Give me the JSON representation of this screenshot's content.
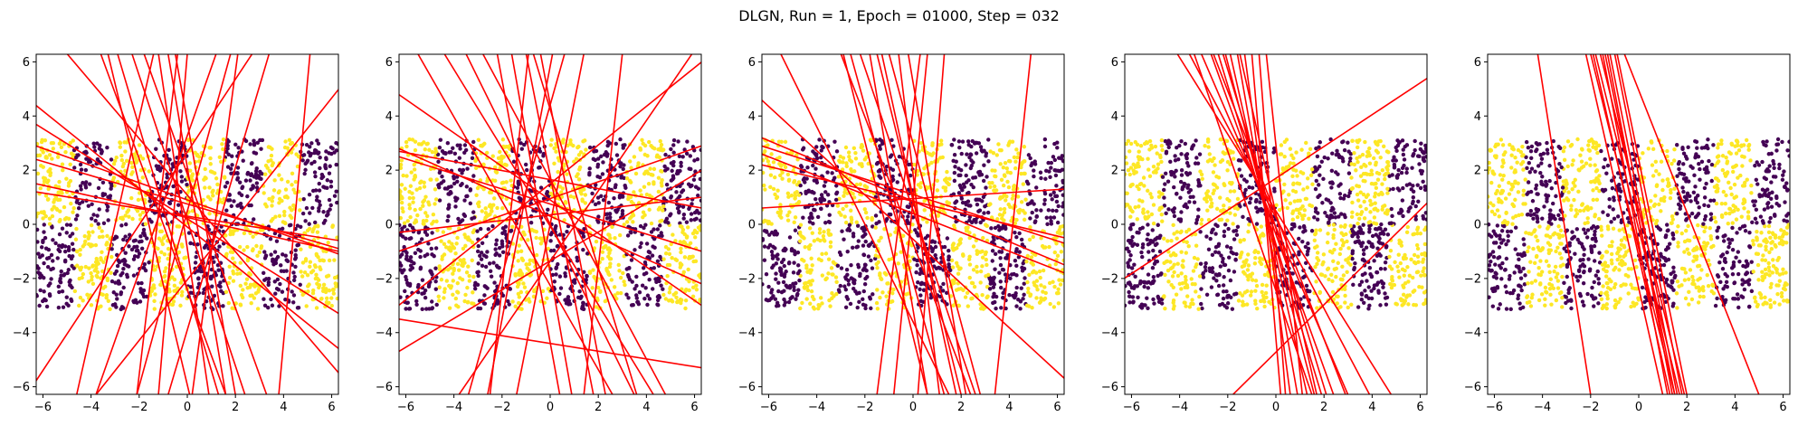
{
  "figure": {
    "suptitle": "DLGN, Run = 1, Epoch = 01000, Step = 032"
  },
  "chart_data": [
    {
      "type": "scatter",
      "panel": 1,
      "xlim": [
        -6.28,
        6.28
      ],
      "ylim": [
        -6.28,
        6.28
      ],
      "xticks": [
        -6,
        -4,
        -2,
        0,
        2,
        4,
        6
      ],
      "yticks": [
        -6,
        -4,
        -2,
        0,
        2,
        4,
        6
      ],
      "xticklabels": [
        "−6",
        "−4",
        "−2",
        "0",
        "2",
        "4",
        "6"
      ],
      "yticklabels": [
        "−6",
        "−4",
        "−2",
        "0",
        "2",
        "4",
        "6"
      ],
      "grid": false,
      "point_colors": {
        "class_0": "#440154",
        "class_1": "#fde725"
      },
      "line_color": "#ff0000",
      "lines": [
        [
          -6.3,
          2.9,
          6.3,
          -1.1
        ],
        [
          -6.3,
          2.4,
          6.3,
          -0.9
        ],
        [
          -6.3,
          1.5,
          6.3,
          -1.0
        ],
        [
          -6.3,
          1.2,
          6.3,
          -0.6
        ],
        [
          -6.3,
          3.7,
          6.3,
          -3.3
        ],
        [
          -6.3,
          4.4,
          6.3,
          -4.6
        ],
        [
          -5.0,
          6.3,
          6.3,
          -5.5
        ],
        [
          -6.3,
          -5.8,
          2.7,
          6.3
        ],
        [
          -3.8,
          -6.3,
          6.3,
          5.0
        ],
        [
          -3.6,
          6.3,
          1.6,
          -6.3
        ],
        [
          -3.3,
          6.3,
          0.1,
          -6.3
        ],
        [
          -2.9,
          6.3,
          1.3,
          -6.3
        ],
        [
          -2.3,
          6.3,
          2.4,
          -6.3
        ],
        [
          -1.8,
          6.3,
          3.3,
          -6.3
        ],
        [
          -1.2,
          6.3,
          0.9,
          -6.3
        ],
        [
          -0.8,
          6.3,
          1.6,
          -6.3
        ],
        [
          0.0,
          6.3,
          -1.2,
          -6.3
        ],
        [
          -0.5,
          6.3,
          2.0,
          -6.3
        ],
        [
          1.2,
          6.3,
          -3.8,
          -6.3
        ],
        [
          1.8,
          6.3,
          -2.1,
          -6.3
        ],
        [
          2.1,
          6.3,
          0.2,
          -6.3
        ],
        [
          3.4,
          6.3,
          -0.8,
          -6.3
        ],
        [
          5.1,
          6.3,
          3.8,
          -6.3
        ],
        [
          -2.1,
          -6.3,
          -0.4,
          6.3
        ],
        [
          -4.6,
          -6.3,
          -1.4,
          6.3
        ]
      ]
    },
    {
      "type": "scatter",
      "panel": 2,
      "xlim": [
        -6.28,
        6.28
      ],
      "ylim": [
        -6.28,
        6.28
      ],
      "xticks": [
        -6,
        -4,
        -2,
        0,
        2,
        4,
        6
      ],
      "yticks": [
        -6,
        -4,
        -2,
        0,
        2,
        4,
        6
      ],
      "xticklabels": [
        "−6",
        "−4",
        "−2",
        "0",
        "2",
        "4",
        "6"
      ],
      "yticklabels": [
        "−6",
        "−4",
        "−2",
        "0",
        "2",
        "4",
        "6"
      ],
      "grid": false,
      "point_colors": {
        "class_0": "#440154",
        "class_1": "#fde725"
      },
      "line_color": "#ff0000",
      "lines": [
        [
          -6.3,
          2.8,
          6.3,
          -2.2
        ],
        [
          -6.3,
          2.5,
          6.3,
          -1.0
        ],
        [
          -6.3,
          2.7,
          6.3,
          0.6
        ],
        [
          -6.3,
          -1.0,
          6.3,
          2.9
        ],
        [
          -6.3,
          -0.3,
          6.3,
          1.0
        ],
        [
          -6.3,
          -3.5,
          6.3,
          -5.3
        ],
        [
          -6.3,
          -4.7,
          6.3,
          2.0
        ],
        [
          -6.3,
          4.8,
          6.3,
          -3.0
        ],
        [
          -6.3,
          -3.0,
          6.3,
          6.0
        ],
        [
          -5.5,
          6.3,
          2.6,
          -6.3
        ],
        [
          -4.4,
          6.3,
          4.3,
          -6.3
        ],
        [
          -3.5,
          6.3,
          3.5,
          -6.3
        ],
        [
          -2.8,
          6.3,
          4.8,
          -6.3
        ],
        [
          -2.2,
          6.3,
          0.4,
          -6.3
        ],
        [
          -1.6,
          6.3,
          0.9,
          -6.3
        ],
        [
          -1.0,
          6.3,
          1.8,
          -6.3
        ],
        [
          -0.4,
          6.3,
          2.3,
          -6.3
        ],
        [
          0.1,
          6.3,
          -2.6,
          -6.3
        ],
        [
          0.6,
          6.3,
          -3.4,
          -6.3
        ],
        [
          1.4,
          6.3,
          -1.4,
          -6.3
        ],
        [
          -3.8,
          -6.3,
          5.9,
          6.3
        ],
        [
          -2.5,
          -6.3,
          -0.9,
          6.3
        ],
        [
          3.0,
          6.3,
          1.4,
          -6.3
        ],
        [
          -0.7,
          6.3,
          3.6,
          -6.3
        ]
      ]
    },
    {
      "type": "scatter",
      "panel": 3,
      "xlim": [
        -6.28,
        6.28
      ],
      "ylim": [
        -6.28,
        6.28
      ],
      "xticks": [
        -6,
        -4,
        -2,
        0,
        2,
        4,
        6
      ],
      "yticks": [
        -6,
        -4,
        -2,
        0,
        2,
        4,
        6
      ],
      "xticklabels": [
        "−6",
        "−4",
        "−2",
        "0",
        "2",
        "4",
        "6"
      ],
      "yticklabels": [
        "−6",
        "−4",
        "−2",
        "0",
        "2",
        "4",
        "6"
      ],
      "grid": false,
      "point_colors": {
        "class_0": "#440154",
        "class_1": "#fde725"
      },
      "line_color": "#ff0000",
      "lines": [
        [
          -6.3,
          3.2,
          6.3,
          -1.5
        ],
        [
          -6.3,
          2.6,
          6.3,
          -1.8
        ],
        [
          -6.3,
          2.2,
          6.3,
          -0.5
        ],
        [
          -6.3,
          4.6,
          6.3,
          -5.7
        ],
        [
          -6.3,
          0.6,
          6.3,
          1.3
        ],
        [
          -6.3,
          2.9,
          6.3,
          -0.7
        ],
        [
          -5.5,
          6.3,
          1.5,
          -6.3
        ],
        [
          -3.0,
          6.3,
          2.4,
          -6.3
        ],
        [
          -2.6,
          6.3,
          1.3,
          -6.3
        ],
        [
          -2.2,
          6.3,
          2.6,
          -6.3
        ],
        [
          -1.8,
          6.3,
          0.6,
          -6.3
        ],
        [
          -1.3,
          6.3,
          1.8,
          -6.3
        ],
        [
          -1.0,
          6.3,
          2.8,
          -6.3
        ],
        [
          -0.6,
          6.3,
          1.1,
          -6.3
        ],
        [
          -0.2,
          6.3,
          2.2,
          -6.3
        ],
        [
          0.3,
          6.3,
          -1.5,
          -6.3
        ],
        [
          0.6,
          6.3,
          -0.8,
          -6.3
        ],
        [
          1.3,
          6.3,
          0.2,
          -6.3
        ],
        [
          -2.9,
          6.3,
          0.6,
          -6.3
        ],
        [
          -1.5,
          6.3,
          2.0,
          -6.3
        ],
        [
          4.9,
          6.3,
          3.4,
          -6.3
        ]
      ]
    },
    {
      "type": "scatter",
      "panel": 4,
      "xlim": [
        -6.28,
        6.28
      ],
      "ylim": [
        -6.28,
        6.28
      ],
      "xticks": [
        -6,
        -4,
        -2,
        0,
        2,
        4,
        6
      ],
      "yticks": [
        -6,
        -4,
        -2,
        0,
        2,
        4,
        6
      ],
      "xticklabels": [
        "−6",
        "−4",
        "−2",
        "0",
        "2",
        "4",
        "6"
      ],
      "yticklabels": [
        "−6",
        "−4",
        "−2",
        "0",
        "2",
        "4",
        "6"
      ],
      "grid": false,
      "point_colors": {
        "class_0": "#440154",
        "class_1": "#fde725"
      },
      "line_color": "#ff0000",
      "lines": [
        [
          -6.3,
          -2.0,
          6.3,
          5.4
        ],
        [
          -1.8,
          -6.3,
          6.3,
          0.8
        ],
        [
          -4.1,
          6.3,
          4.8,
          -6.3
        ],
        [
          -3.6,
          6.3,
          3.9,
          -6.3
        ],
        [
          -3.1,
          6.3,
          3.0,
          -6.3
        ],
        [
          -2.7,
          6.3,
          2.4,
          -6.3
        ],
        [
          -2.4,
          6.3,
          1.9,
          -6.3
        ],
        [
          -2.1,
          6.3,
          1.6,
          -6.3
        ],
        [
          -1.9,
          6.3,
          1.3,
          -6.3
        ],
        [
          -1.6,
          6.3,
          0.9,
          -6.3
        ],
        [
          -1.3,
          6.3,
          0.6,
          -6.3
        ],
        [
          -1.0,
          6.3,
          0.2,
          -6.3
        ],
        [
          -0.7,
          6.3,
          0.4,
          -6.3
        ],
        [
          -0.4,
          6.3,
          1.1,
          -6.3
        ],
        [
          -2.6,
          6.3,
          2.9,
          -6.3
        ],
        [
          -3.4,
          6.3,
          1.5,
          -6.3
        ],
        [
          -2.2,
          6.3,
          2.1,
          -6.3
        ],
        [
          -1.5,
          6.3,
          1.7,
          -6.3
        ]
      ]
    },
    {
      "type": "scatter",
      "panel": 5,
      "xlim": [
        -6.28,
        6.28
      ],
      "ylim": [
        -6.28,
        6.28
      ],
      "xticks": [
        -6,
        -4,
        -2,
        0,
        2,
        4,
        6
      ],
      "yticks": [
        -6,
        -4,
        -2,
        0,
        2,
        4,
        6
      ],
      "xticklabels": [
        "−6",
        "−4",
        "−2",
        "0",
        "2",
        "4",
        "6"
      ],
      "yticklabels": [
        "−6",
        "−4",
        "−2",
        "0",
        "2",
        "4",
        "6"
      ],
      "grid": false,
      "point_colors": {
        "class_0": "#440154",
        "class_1": "#fde725"
      },
      "line_color": "#ff0000",
      "lines": [
        [
          -2.0,
          6.3,
          1.5,
          -6.3
        ],
        [
          -1.8,
          6.3,
          1.7,
          -6.3
        ],
        [
          -1.6,
          6.3,
          1.9,
          -6.3
        ],
        [
          -1.5,
          6.3,
          1.2,
          -6.3
        ],
        [
          -1.3,
          6.3,
          1.4,
          -6.3
        ],
        [
          -1.2,
          6.3,
          1.6,
          -6.3
        ],
        [
          -1.0,
          6.3,
          1.8,
          -6.3
        ],
        [
          -0.9,
          6.3,
          2.0,
          -6.3
        ],
        [
          -2.2,
          6.3,
          1.0,
          -6.3
        ],
        [
          -4.2,
          6.3,
          -2.0,
          -6.3
        ],
        [
          -0.6,
          6.3,
          5.0,
          -6.3
        ],
        [
          -1.9,
          6.3,
          1.3,
          -6.3
        ],
        [
          -1.4,
          6.3,
          1.5,
          -6.3
        ]
      ]
    }
  ]
}
